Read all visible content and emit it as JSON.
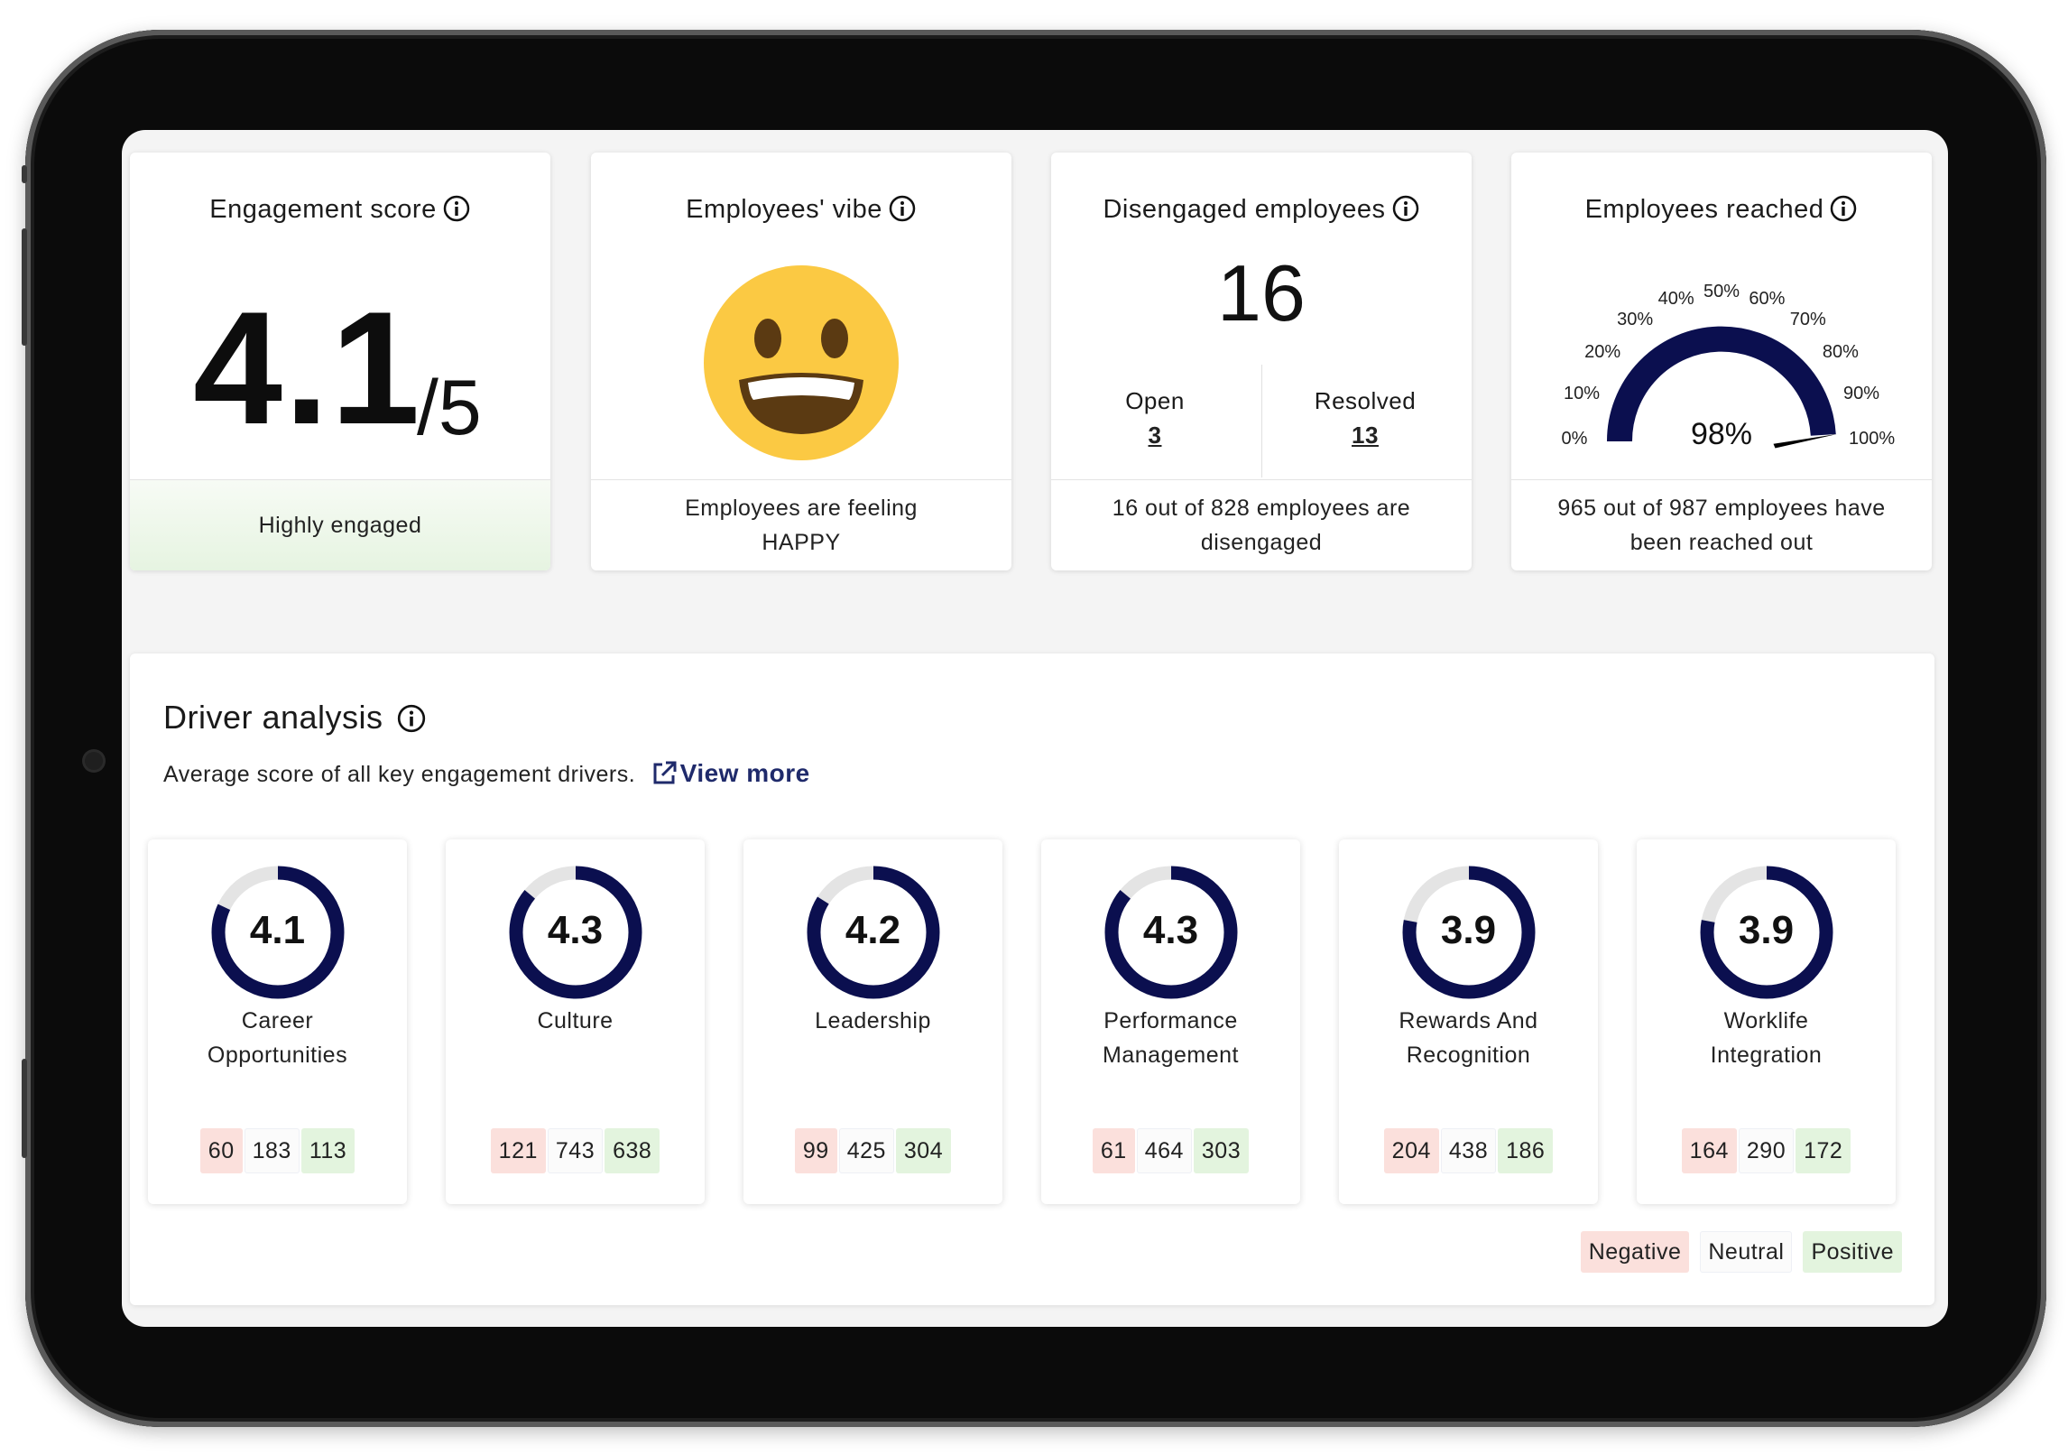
{
  "kpis": {
    "engagement": {
      "title": "Engagement score",
      "score": "4.1",
      "denominator": "/5",
      "footer": "Highly engaged"
    },
    "vibe": {
      "title": "Employees' vibe",
      "emoji": "😃",
      "footer": "Employees are feeling HAPPY"
    },
    "disengaged": {
      "title": "Disengaged employees",
      "count": "16",
      "open_label": "Open",
      "open_value": "3",
      "resolved_label": "Resolved",
      "resolved_value": "13",
      "footer": "16 out of 828 employees are disengaged"
    },
    "reached": {
      "title": "Employees reached",
      "value_label": "98%",
      "value": 98,
      "scale_labels": [
        "0%",
        "10%",
        "20%",
        "30%",
        "40%",
        "50%",
        "60%",
        "70%",
        "80%",
        "90%",
        "100%"
      ],
      "footer": "965 out of 987 employees have been reached out"
    }
  },
  "driver_analysis": {
    "title": "Driver analysis",
    "subtitle": "Average score of all key engagement drivers.",
    "view_more": "View more",
    "max_score": 5,
    "drivers": [
      {
        "line1": "Career",
        "line2": "Opportunities",
        "score": "4.1",
        "negative": "60",
        "neutral": "183",
        "positive": "113"
      },
      {
        "line1": "Culture",
        "line2": "",
        "score": "4.3",
        "negative": "121",
        "neutral": "743",
        "positive": "638"
      },
      {
        "line1": "Leadership",
        "line2": "",
        "score": "4.2",
        "negative": "99",
        "neutral": "425",
        "positive": "304"
      },
      {
        "line1": "Performance",
        "line2": "Management",
        "score": "4.3",
        "negative": "61",
        "neutral": "464",
        "positive": "303"
      },
      {
        "line1": "Rewards And",
        "line2": "Recognition",
        "score": "3.9",
        "negative": "204",
        "neutral": "438",
        "positive": "186"
      },
      {
        "line1": "Worklife",
        "line2": "Integration",
        "score": "3.9",
        "negative": "164",
        "neutral": "290",
        "positive": "172"
      }
    ],
    "legend": {
      "negative": "Negative",
      "neutral": "Neutral",
      "positive": "Positive"
    }
  },
  "colors": {
    "accent": "#0b0f4f",
    "track": "#e4e4e4",
    "negative_bg": "#fbe0dc",
    "positive_bg": "#e3f4de",
    "emoji_face": "#fbc943"
  },
  "icons": [
    "info-icon",
    "external-link-icon",
    "smiley-icon"
  ]
}
